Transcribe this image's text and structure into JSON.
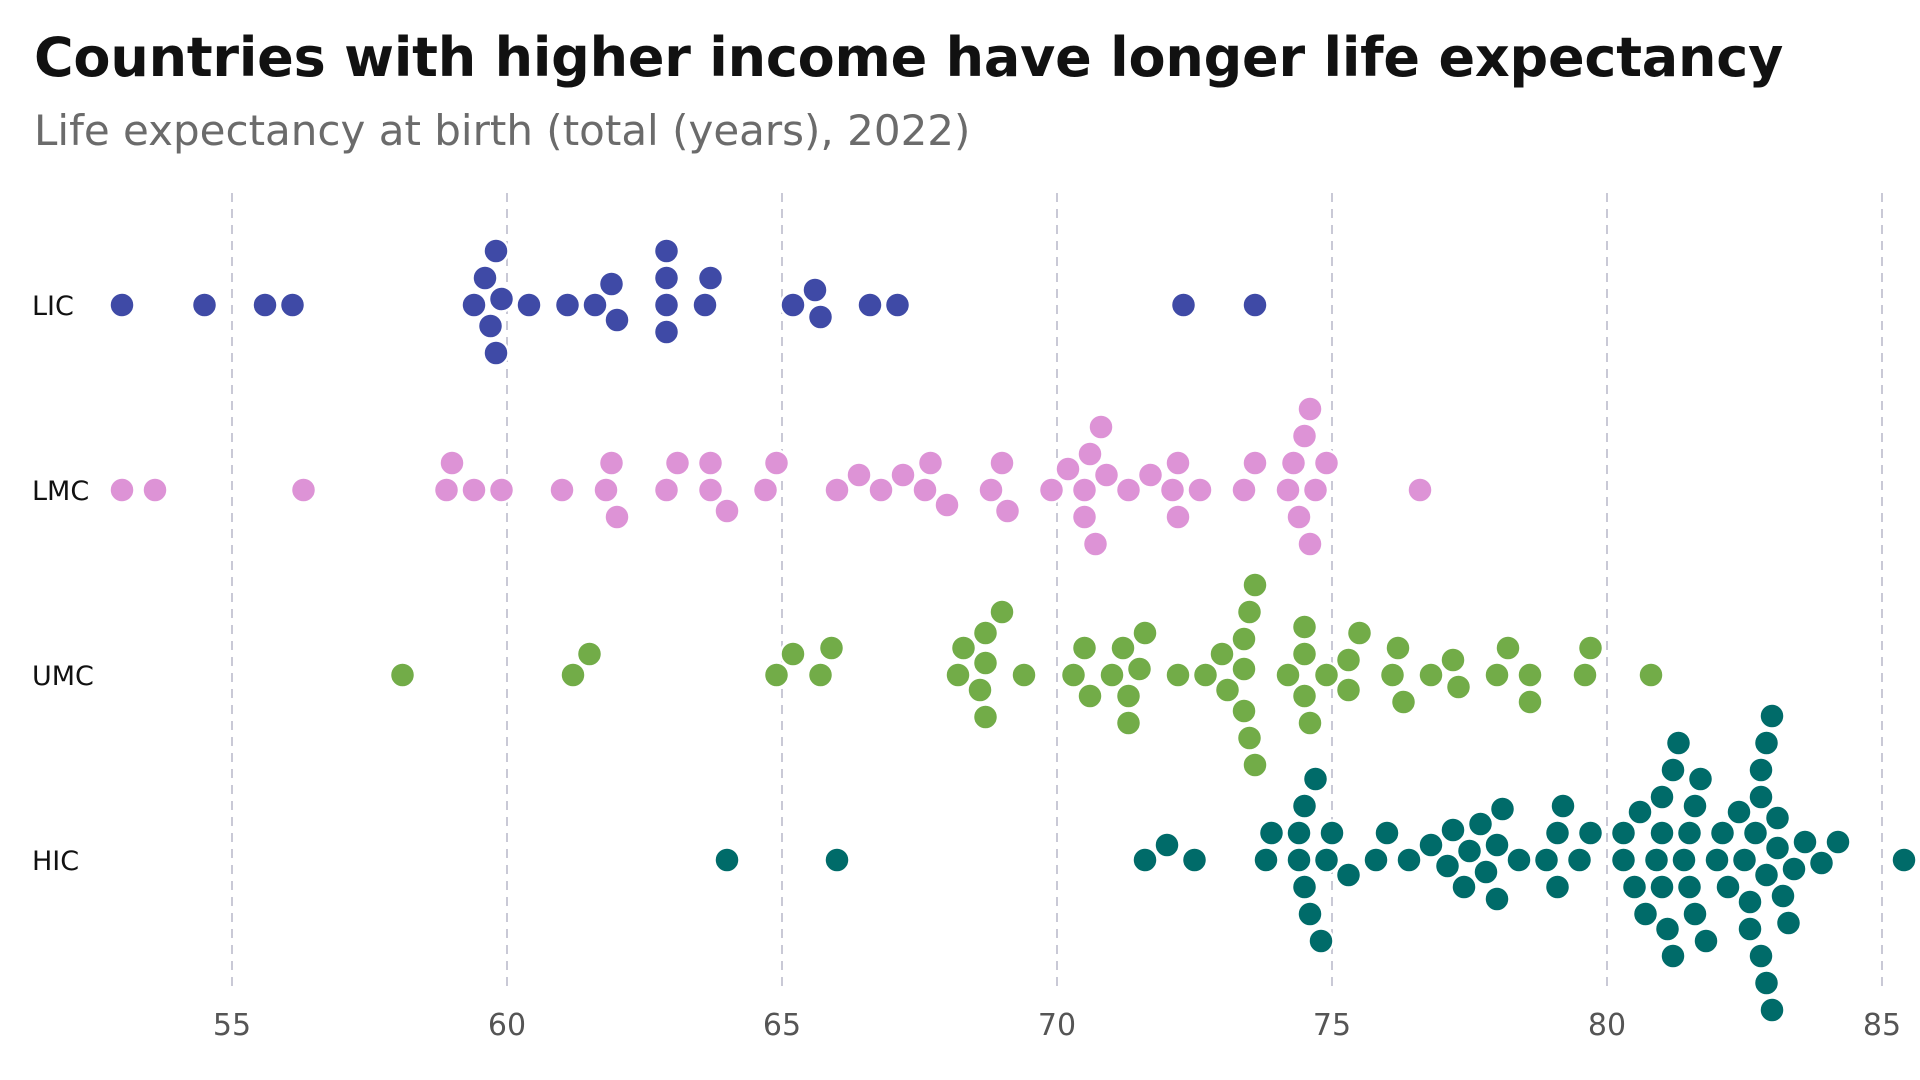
{
  "chart_data": {
    "type": "scatter",
    "title": "Countries with higher income have longer life expectancy",
    "subtitle": "Life expectancy at birth (total (years), 2022)",
    "xlabel": "",
    "ylabel": "",
    "xlim": [
      51.5,
      85.5
    ],
    "x_ticks": [
      55,
      60,
      65,
      70,
      75,
      80,
      85
    ],
    "grid": "vertical dashed",
    "legend": "none",
    "categories": [
      "LIC",
      "LMC",
      "UMC",
      "HIC"
    ],
    "series": [
      {
        "category": "LIC",
        "color": "#3f4aa6",
        "values": [
          53.0,
          54.5,
          55.6,
          56.1,
          59.4,
          59.6,
          59.7,
          59.8,
          59.8,
          59.9,
          60.4,
          61.1,
          61.6,
          61.9,
          62.0,
          62.9,
          62.9,
          62.9,
          62.9,
          63.6,
          63.7,
          65.2,
          65.6,
          65.7,
          66.6,
          67.1,
          72.3,
          73.6
        ]
      },
      {
        "category": "LMC",
        "color": "#dd93d6",
        "values": [
          53.0,
          53.6,
          56.3,
          58.9,
          59.0,
          59.4,
          59.9,
          61.0,
          61.8,
          61.9,
          62.0,
          62.9,
          63.1,
          63.7,
          63.7,
          64.0,
          64.7,
          64.9,
          66.0,
          66.4,
          66.8,
          67.2,
          67.6,
          67.7,
          68.0,
          68.8,
          69.0,
          69.1,
          69.9,
          70.2,
          70.5,
          70.5,
          70.6,
          70.7,
          70.8,
          70.9,
          71.3,
          71.7,
          72.1,
          72.2,
          72.2,
          72.6,
          73.4,
          73.6,
          74.2,
          74.3,
          74.4,
          74.5,
          74.6,
          74.6,
          74.7,
          74.9,
          76.6
        ]
      },
      {
        "category": "UMC",
        "color": "#72ac48",
        "values": [
          58.1,
          61.2,
          61.5,
          64.9,
          65.2,
          65.7,
          65.9,
          68.2,
          68.3,
          68.6,
          68.7,
          68.7,
          68.7,
          69.0,
          69.4,
          70.3,
          70.5,
          70.6,
          71.0,
          71.2,
          71.3,
          71.3,
          71.5,
          71.6,
          72.2,
          72.7,
          73.0,
          73.1,
          73.4,
          73.4,
          73.4,
          73.5,
          73.5,
          73.6,
          73.6,
          74.2,
          74.5,
          74.5,
          74.5,
          74.6,
          74.9,
          75.3,
          75.3,
          75.5,
          76.1,
          76.2,
          76.3,
          76.8,
          77.2,
          77.3,
          78.0,
          78.2,
          78.6,
          78.6,
          79.6,
          79.7,
          80.8
        ]
      },
      {
        "category": "HIC",
        "color": "#006b69",
        "values": [
          64.0,
          66.0,
          71.6,
          72.0,
          72.5,
          73.8,
          73.9,
          74.4,
          74.4,
          74.5,
          74.5,
          74.6,
          74.7,
          74.8,
          74.9,
          75.0,
          75.3,
          75.8,
          76.0,
          76.4,
          76.8,
          77.1,
          77.2,
          77.4,
          77.5,
          77.7,
          77.8,
          78.0,
          78.0,
          78.1,
          78.4,
          78.9,
          79.1,
          79.1,
          79.2,
          79.5,
          79.7,
          80.3,
          80.3,
          80.5,
          80.6,
          80.7,
          80.9,
          81.0,
          81.0,
          81.0,
          81.1,
          81.2,
          81.2,
          81.3,
          81.4,
          81.5,
          81.5,
          81.6,
          81.6,
          81.7,
          81.8,
          82.0,
          82.1,
          82.2,
          82.4,
          82.5,
          82.6,
          82.6,
          82.7,
          82.8,
          82.8,
          82.8,
          82.9,
          82.9,
          82.9,
          83.0,
          83.0,
          83.1,
          83.1,
          83.2,
          83.3,
          83.4,
          83.6,
          83.9,
          84.2,
          85.4
        ]
      }
    ]
  }
}
